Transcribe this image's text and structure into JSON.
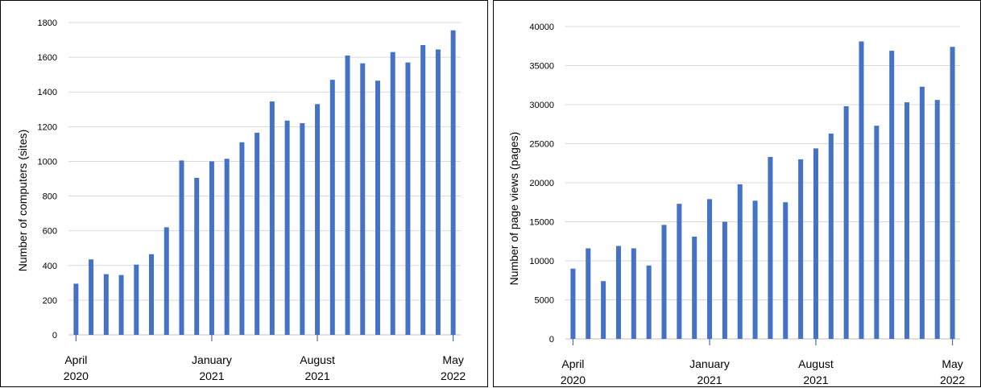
{
  "colors": {
    "bar": "#4472C4",
    "grid": "#D9D9D9",
    "axis": "#BFBFBF"
  },
  "chart_data": [
    {
      "type": "bar",
      "title": "",
      "xlabel": "",
      "ylabel": "Number of computers (sites)",
      "ylim": [
        0,
        1800
      ],
      "yticks": [
        0,
        200,
        400,
        600,
        800,
        1000,
        1200,
        1400,
        1600,
        1800
      ],
      "grid": true,
      "x_tick_labels": [
        {
          "month": "April",
          "year": "2020"
        },
        {
          "month": "January",
          "year": "2021"
        },
        {
          "month": "August",
          "year": "2021"
        },
        {
          "month": "May",
          "year": "2022"
        }
      ],
      "x_tick_label_indices": [
        0,
        9,
        16,
        25
      ],
      "categories": [
        "2020-04",
        "2020-05",
        "2020-06",
        "2020-07",
        "2020-08",
        "2020-09",
        "2020-10",
        "2020-11",
        "2020-12",
        "2021-01",
        "2021-02",
        "2021-03",
        "2021-04",
        "2021-05",
        "2021-06",
        "2021-07",
        "2021-08",
        "2021-09",
        "2021-10",
        "2021-11",
        "2021-12",
        "2022-01",
        "2022-02",
        "2022-03",
        "2022-04",
        "2022-05"
      ],
      "values": [
        295,
        435,
        350,
        345,
        405,
        465,
        620,
        1005,
        905,
        1000,
        1015,
        1110,
        1165,
        1345,
        1235,
        1220,
        1330,
        1470,
        1610,
        1565,
        1465,
        1630,
        1570,
        1670,
        1645,
        1755
      ]
    },
    {
      "type": "bar",
      "title": "",
      "xlabel": "",
      "ylabel": "Number of page views (pages)",
      "ylim": [
        0,
        40000
      ],
      "yticks": [
        0,
        5000,
        10000,
        15000,
        20000,
        25000,
        30000,
        35000,
        40000
      ],
      "grid": true,
      "x_tick_labels": [
        {
          "month": "April",
          "year": "2020"
        },
        {
          "month": "January",
          "year": "2021"
        },
        {
          "month": "August",
          "year": "2021"
        },
        {
          "month": "May",
          "year": "2022"
        }
      ],
      "x_tick_label_indices": [
        0,
        9,
        16,
        25
      ],
      "categories": [
        "2020-04",
        "2020-05",
        "2020-06",
        "2020-07",
        "2020-08",
        "2020-09",
        "2020-10",
        "2020-11",
        "2020-12",
        "2021-01",
        "2021-02",
        "2021-03",
        "2021-04",
        "2021-05",
        "2021-06",
        "2021-07",
        "2021-08",
        "2021-09",
        "2021-10",
        "2021-11",
        "2021-12",
        "2022-01",
        "2022-02",
        "2022-03",
        "2022-04",
        "2022-05"
      ],
      "values": [
        9000,
        11600,
        7400,
        11900,
        11600,
        9400,
        14600,
        17300,
        13100,
        17900,
        15000,
        19800,
        17700,
        23300,
        17500,
        23000,
        24400,
        26300,
        29800,
        38100,
        27300,
        36900,
        30300,
        32300,
        30600,
        37400
      ]
    }
  ]
}
